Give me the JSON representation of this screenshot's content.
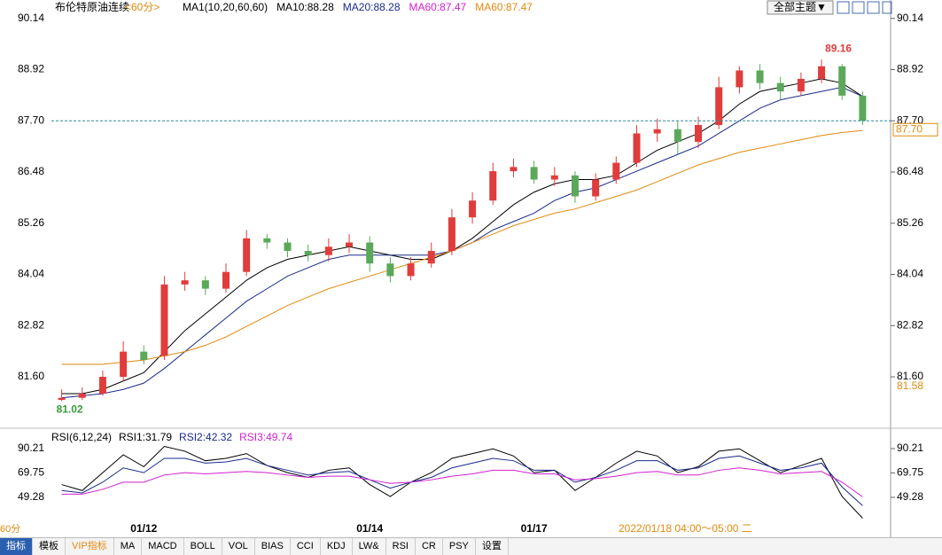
{
  "chart_data": [
    {
      "type": "candlestick",
      "title": "布伦特原油连续",
      "period": "<60分>",
      "indicator_labels": [
        {
          "text": "MA1(10,20,60,60)",
          "color": "#000000"
        },
        {
          "text": "MA10:88.28",
          "color": "#000000"
        },
        {
          "text": "MA20:88.28",
          "color": "#1a2a8a"
        },
        {
          "text": "MA60:87.47",
          "color": "#d020d0"
        },
        {
          "text": "MA60:87.47",
          "color": "#e08a10"
        }
      ],
      "categories": [
        null,
        null,
        null,
        null,
        "01/12",
        null,
        null,
        null,
        null,
        null,
        null,
        null,
        null,
        null,
        null,
        "01/14",
        null,
        null,
        null,
        null,
        null,
        null,
        null,
        "01/17",
        null,
        null,
        null,
        null,
        null,
        null,
        null,
        null,
        null,
        null,
        null,
        null,
        null,
        null,
        null,
        null
      ],
      "opens": [
        81.05,
        81.1,
        81.2,
        81.6,
        82.2,
        82.1,
        83.8,
        83.9,
        83.7,
        84.1,
        84.9,
        84.8,
        84.6,
        84.5,
        84.7,
        84.8,
        84.3,
        84.0,
        84.3,
        84.6,
        85.4,
        85.8,
        86.5,
        86.6,
        86.3,
        86.4,
        85.9,
        86.3,
        86.7,
        87.4,
        87.5,
        87.2,
        87.6,
        88.5,
        88.9,
        88.6,
        88.4,
        88.7,
        89.0,
        88.3
      ],
      "highs": [
        81.3,
        81.35,
        81.75,
        82.45,
        82.35,
        84.0,
        84.1,
        84.0,
        84.3,
        85.1,
        85.0,
        84.9,
        84.75,
        84.9,
        85.0,
        84.95,
        84.45,
        84.45,
        84.8,
        85.6,
        86.0,
        86.7,
        86.8,
        86.75,
        86.6,
        86.5,
        86.45,
        86.85,
        87.6,
        87.75,
        87.7,
        87.8,
        88.75,
        89.0,
        89.05,
        88.75,
        88.85,
        89.16,
        89.05,
        88.4
      ],
      "lows": [
        81.02,
        81.05,
        81.15,
        81.5,
        81.9,
        82.0,
        83.65,
        83.55,
        83.6,
        84.0,
        84.65,
        84.45,
        84.35,
        84.35,
        84.55,
        84.1,
        83.85,
        83.9,
        84.2,
        84.5,
        85.25,
        85.7,
        86.35,
        86.2,
        86.15,
        85.75,
        85.8,
        86.2,
        86.6,
        87.2,
        86.9,
        87.05,
        87.5,
        88.35,
        88.45,
        88.2,
        88.3,
        88.6,
        88.2,
        87.6
      ],
      "closes": [
        81.1,
        81.2,
        81.6,
        82.2,
        82.0,
        83.8,
        83.9,
        83.7,
        84.1,
        84.9,
        84.8,
        84.6,
        84.5,
        84.7,
        84.8,
        84.3,
        84.0,
        84.3,
        84.6,
        85.4,
        85.8,
        86.5,
        86.6,
        86.3,
        86.4,
        85.9,
        86.3,
        86.7,
        87.4,
        87.5,
        87.2,
        87.6,
        88.5,
        88.9,
        88.6,
        88.4,
        88.7,
        89.0,
        88.3,
        87.7
      ],
      "up_color": "#e03c3c",
      "down_color": "#5ba85b",
      "series": [
        {
          "name": "MA10",
          "color": "#000000",
          "values": [
            81.2,
            81.2,
            81.3,
            81.5,
            81.7,
            82.2,
            82.7,
            83.1,
            83.5,
            83.9,
            84.2,
            84.4,
            84.5,
            84.6,
            84.7,
            84.6,
            84.5,
            84.4,
            84.4,
            84.6,
            84.9,
            85.3,
            85.7,
            86.0,
            86.2,
            86.3,
            86.3,
            86.4,
            86.7,
            87.0,
            87.2,
            87.4,
            87.7,
            88.1,
            88.4,
            88.5,
            88.6,
            88.7,
            88.6,
            88.28
          ]
        },
        {
          "name": "MA20",
          "color": "#1a2a8a",
          "values": [
            81.1,
            81.15,
            81.2,
            81.3,
            81.45,
            81.8,
            82.2,
            82.6,
            83.0,
            83.4,
            83.7,
            84.0,
            84.2,
            84.4,
            84.5,
            84.5,
            84.5,
            84.5,
            84.5,
            84.6,
            84.8,
            85.1,
            85.3,
            85.5,
            85.8,
            86.0,
            86.1,
            86.3,
            86.5,
            86.7,
            86.9,
            87.1,
            87.4,
            87.7,
            88.0,
            88.2,
            88.3,
            88.4,
            88.5,
            88.28
          ]
        },
        {
          "name": "MA60",
          "color": "#e08a10",
          "values": [
            81.9,
            81.9,
            81.9,
            81.95,
            82.0,
            82.1,
            82.2,
            82.35,
            82.55,
            82.8,
            83.05,
            83.3,
            83.5,
            83.7,
            83.85,
            84.0,
            84.15,
            84.3,
            84.45,
            84.6,
            84.8,
            85.0,
            85.2,
            85.35,
            85.5,
            85.6,
            85.75,
            85.9,
            86.05,
            86.25,
            86.45,
            86.65,
            86.8,
            86.95,
            87.05,
            87.15,
            87.25,
            87.35,
            87.42,
            87.47
          ]
        }
      ],
      "ylim": [
        80.65,
        90.41
      ],
      "yticks": [
        90.14,
        88.92,
        {
          "value": 87.7,
          "label": "87.70"
        },
        86.48,
        85.26,
        84.04,
        82.82,
        {
          "value": 81.6,
          "label": "81.60"
        }
      ],
      "last_price": {
        "value": 87.7,
        "label": "87.70"
      },
      "ma60_axis_label": 81.58
    },
    {
      "type": "line",
      "title": "RSI(6,12,24)",
      "series": [
        {
          "name": "RSI1:31.79",
          "color": "#000000",
          "values": [
            60,
            55,
            70,
            85,
            75,
            92,
            88,
            80,
            82,
            86,
            76,
            70,
            66,
            72,
            74,
            60,
            50,
            62,
            70,
            82,
            86,
            90,
            84,
            70,
            72,
            55,
            66,
            78,
            88,
            84,
            70,
            75,
            88,
            90,
            80,
            70,
            76,
            82,
            50,
            31.79
          ]
        },
        {
          "name": "RSI2:42.32",
          "color": "#1a2a8a",
          "values": [
            55,
            53,
            62,
            74,
            70,
            82,
            82,
            78,
            79,
            82,
            76,
            72,
            68,
            70,
            71,
            64,
            57,
            62,
            66,
            74,
            78,
            82,
            80,
            72,
            72,
            62,
            66,
            72,
            80,
            80,
            72,
            74,
            82,
            84,
            78,
            72,
            74,
            78,
            58,
            42.32
          ]
        },
        {
          "name": "RSI3:49.74",
          "color": "#d020d0",
          "values": [
            52,
            52,
            56,
            62,
            62,
            68,
            70,
            69,
            70,
            71,
            70,
            68,
            66,
            67,
            67,
            64,
            61,
            62,
            64,
            67,
            69,
            72,
            72,
            69,
            69,
            64,
            65,
            67,
            70,
            71,
            68,
            68,
            72,
            74,
            72,
            69,
            70,
            71,
            62,
            49.74
          ]
        }
      ],
      "ylim": [
        27.7,
        104.3
      ],
      "yticks": [
        90.21,
        69.75,
        49.28
      ]
    }
  ],
  "ui": {
    "theme_button": "全部主题▼",
    "status": "2022/01/18 04:00～05:00 二",
    "period_tab": "60分",
    "tabs": [
      "指标",
      "模板",
      "VIP指标",
      "MA",
      "MACD",
      "BOLL",
      "VOL",
      "BIAS",
      "CCI",
      "KDJ",
      "LW&",
      "RSI",
      "CR",
      "PSY",
      "设置"
    ]
  }
}
